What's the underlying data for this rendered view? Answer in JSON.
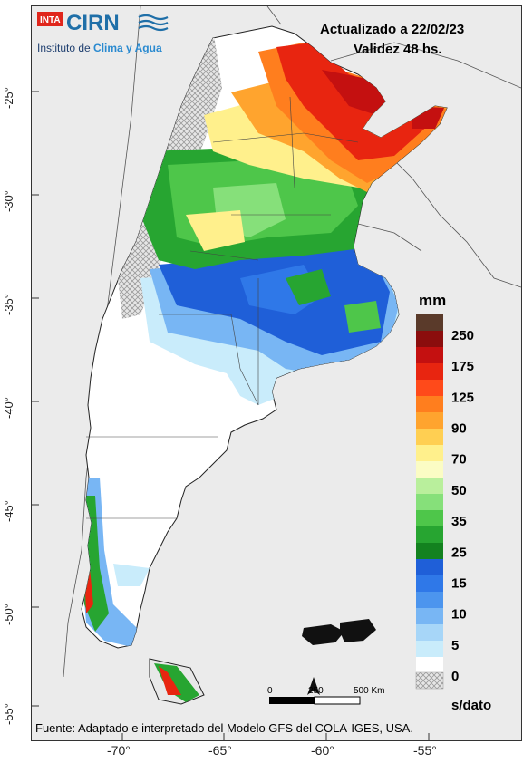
{
  "logo": {
    "inta": "INTA",
    "cirn": "CIRN",
    "subtitle_a": "Instituto de ",
    "subtitle_b": "Clima y Agua"
  },
  "header": {
    "updated": "Actualizado a 22/02/23",
    "validity": "Validez 48 hs."
  },
  "legend": {
    "unit": "mm",
    "labels": [
      "250",
      "175",
      "125",
      "90",
      "70",
      "50",
      "35",
      "25",
      "15",
      "10",
      "5",
      "0"
    ],
    "nodata_label": "s/dato",
    "colors": [
      "#5a3a2a",
      "#8b0d0d",
      "#c41010",
      "#e82510",
      "#ff4a1a",
      "#ff7e1e",
      "#ffa42e",
      "#ffcf52",
      "#fff08c",
      "#fbfcc4",
      "#b9ef9c",
      "#86e07a",
      "#4ec64a",
      "#27a531",
      "#13821f",
      "#1f5fd8",
      "#2f78e8",
      "#4c95ee",
      "#78b6f4",
      "#a7d6f8",
      "#c9ecfb",
      "#ffffff"
    ]
  },
  "scalebar": {
    "labels": [
      "0",
      "250",
      "500 Km"
    ]
  },
  "axes": {
    "lat_labels": [
      "-25°",
      "-30°",
      "-35°",
      "-40°",
      "-45°",
      "-50°",
      "-55°"
    ],
    "lon_labels": [
      "-70°",
      "-65°",
      "-60°",
      "-55°"
    ]
  },
  "footer": {
    "source": "Fuente: Adaptado e interpretado del Modelo GFS del COLA-IGES, USA."
  }
}
